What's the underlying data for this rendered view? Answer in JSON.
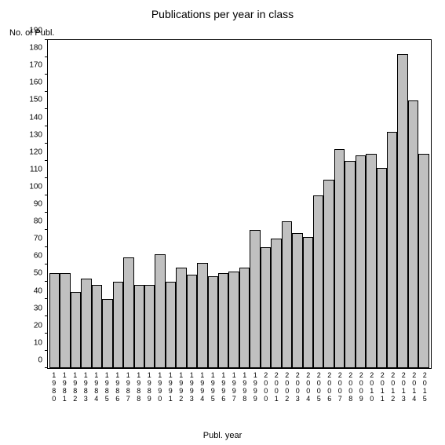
{
  "chart": {
    "type": "bar",
    "title": "Publications per year in class",
    "title_fontsize": 14,
    "ylabel": "No. of Publ.",
    "xlabel": "Publ. year",
    "label_fontsize": 11,
    "tick_fontsize": 10,
    "background_color": "#ffffff",
    "border_color": "#000000",
    "bar_color": "#c0c0c0",
    "bar_border_color": "#000000",
    "ylim": [
      0,
      190
    ],
    "ytick_step": 10,
    "yticks": [
      0,
      10,
      20,
      30,
      40,
      50,
      60,
      70,
      80,
      90,
      100,
      110,
      120,
      130,
      140,
      150,
      160,
      170,
      180,
      190
    ],
    "categories": [
      "1980",
      "1981",
      "1982",
      "1983",
      "1984",
      "1985",
      "1986",
      "1987",
      "1988",
      "1989",
      "1990",
      "1991",
      "1992",
      "1993",
      "1994",
      "1995",
      "1996",
      "1997",
      "1998",
      "1999",
      "2000",
      "2001",
      "2002",
      "2003",
      "2004",
      "2005",
      "2006",
      "2007",
      "2008",
      "2009",
      "2010",
      "2011",
      "2012",
      "2013",
      "2014",
      "2015"
    ],
    "values": [
      55,
      55,
      44,
      52,
      48,
      40,
      50,
      64,
      48,
      48,
      66,
      50,
      58,
      54,
      61,
      53,
      55,
      56,
      58,
      80,
      70,
      75,
      85,
      78,
      76,
      100,
      109,
      127,
      120,
      123,
      124,
      116,
      137,
      182,
      155,
      124
    ]
  }
}
